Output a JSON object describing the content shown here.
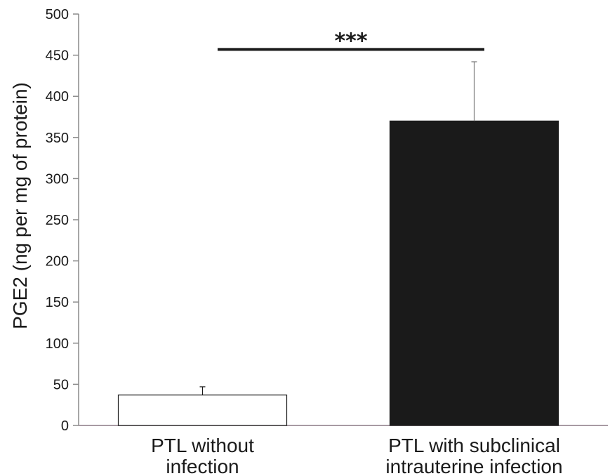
{
  "chart_data": {
    "type": "bar",
    "categories": [
      [
        "PTL without",
        "infection"
      ],
      [
        "PTL with subclinical",
        "intrauterine infection"
      ]
    ],
    "values": [
      37,
      370
    ],
    "error_upper": [
      47,
      442
    ],
    "bar_colors": [
      "#ffffff",
      "#1a1a1a"
    ],
    "ylabel": "PGE2 (ng per mg of protein)",
    "ylim": [
      0,
      500
    ],
    "yticks": [
      0,
      50,
      100,
      150,
      200,
      250,
      300,
      350,
      400,
      450,
      500
    ],
    "significance": {
      "label": "***",
      "y": 457,
      "between": [
        0,
        1
      ]
    },
    "grid": false,
    "legend": "none"
  }
}
